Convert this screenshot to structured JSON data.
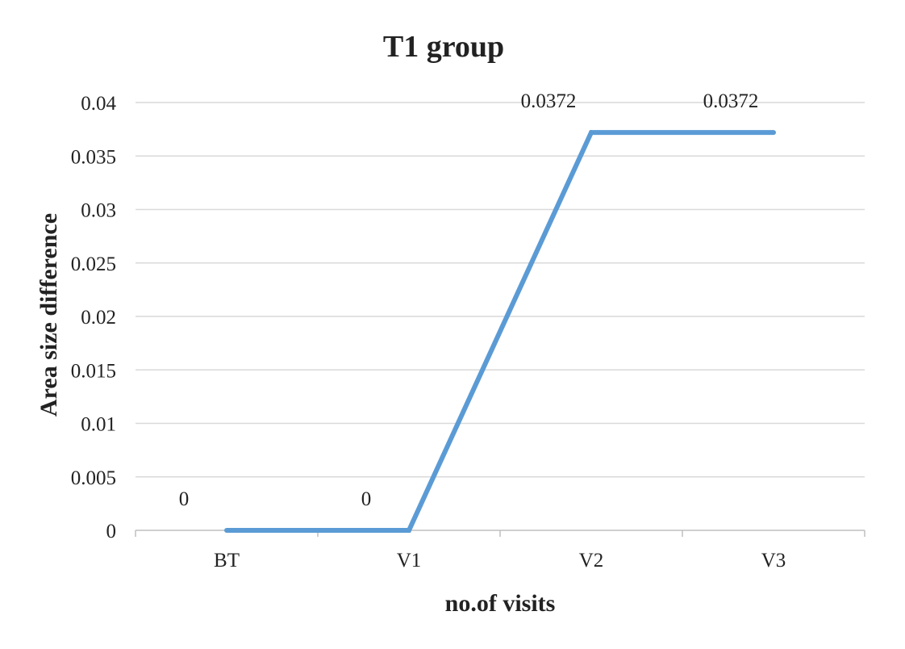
{
  "chart_data": {
    "type": "line",
    "title": "T1 group",
    "xlabel": "no.of visits",
    "ylabel": "Area size difference",
    "categories": [
      "BT",
      "V1",
      "V2",
      "V3"
    ],
    "series": [
      {
        "values": [
          0,
          0,
          0.0372,
          0.0372
        ],
        "labels": [
          "0",
          "0",
          "0.0372",
          "0.0372"
        ]
      }
    ],
    "ylim": [
      0,
      0.04
    ],
    "yticks": [
      0,
      0.005,
      0.01,
      0.015,
      0.02,
      0.025,
      0.03,
      0.035,
      0.04
    ],
    "ytick_labels": [
      "0",
      "0.005",
      "0.01",
      "0.015",
      "0.02",
      "0.025",
      "0.03",
      "0.035",
      "0.04"
    ],
    "grid": true,
    "legend": "none"
  },
  "colors": {
    "line": "#5B9BD5",
    "grid": "#D9D9D9",
    "axis": "#BFBFBF"
  }
}
